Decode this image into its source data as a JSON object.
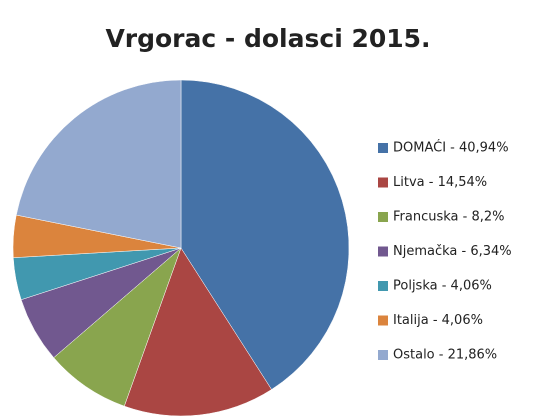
{
  "chart_data": {
    "type": "pie",
    "title": "Vrgorac - dolasci 2015.",
    "categories": [
      "DOMAĆI - 40,94%",
      "Litva - 14,54%",
      "Francuska - 8,2%",
      "Njemačka - 6,34%",
      "Poljska - 4,06%",
      "Italija - 4,06%",
      "Ostalo - 21,86%"
    ],
    "values": [
      40.94,
      14.54,
      8.2,
      6.34,
      4.06,
      4.06,
      21.86
    ],
    "colors": [
      "#4572A7",
      "#AA4643",
      "#89A54E",
      "#71588F",
      "#4198AF",
      "#DB843D",
      "#93A9CF"
    ],
    "legend": "right"
  }
}
